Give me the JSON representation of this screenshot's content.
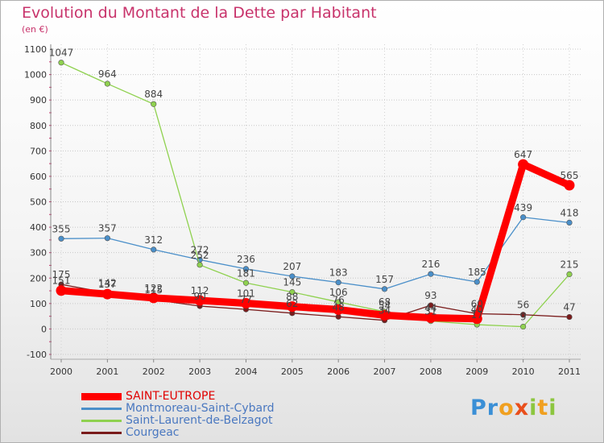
{
  "header": {
    "title": "Evolution du Montant de la Dette par Habitant",
    "unit": "(en €)"
  },
  "brand": {
    "letters": [
      {
        "ch": "P",
        "color": "#3a8fd6"
      },
      {
        "ch": "r",
        "color": "#3a8fd6"
      },
      {
        "ch": "o",
        "color": "#f0a020"
      },
      {
        "ch": "x",
        "color": "#e94e1b"
      },
      {
        "ch": "i",
        "color": "#8cc63f"
      },
      {
        "ch": "t",
        "color": "#f0a020"
      },
      {
        "ch": "i",
        "color": "#8cc63f"
      }
    ]
  },
  "chart_data": {
    "type": "line",
    "title": "Evolution du Montant de la Dette par Habitant",
    "subtitle": "(en €)",
    "x": [
      "2000",
      "2001",
      "2002",
      "2003",
      "2004",
      "2005",
      "2006",
      "2007",
      "2008",
      "2009",
      "2010",
      "2011"
    ],
    "yticks": [
      -100,
      0,
      100,
      200,
      300,
      400,
      500,
      600,
      700,
      800,
      900,
      1000,
      1100
    ],
    "ylim": [
      -100,
      1100
    ],
    "grid": "horizontal dotted",
    "legend_position": "bottom-left",
    "series": [
      {
        "name": "SAINT-EUTROPE",
        "color": "#ff0000",
        "values": [
          151,
          137,
          122,
          112,
          101,
          88,
          76,
          54,
          44,
          40,
          647,
          565
        ],
        "labels": [
          "151",
          "137",
          "122",
          "112",
          "101",
          "88",
          "76",
          "54",
          "44",
          "40",
          "647",
          "565"
        ],
        "emphasis": true
      },
      {
        "name": "Montmoreau-Saint-Cybard",
        "color": "#4a8fc9",
        "values": [
          355,
          357,
          312,
          272,
          236,
          207,
          183,
          157,
          216,
          185,
          439,
          418
        ],
        "labels": [
          "355",
          "357",
          "312",
          "272",
          "236",
          "207",
          "183",
          "157",
          "216",
          "185",
          "439",
          "418"
        ]
      },
      {
        "name": "Saint-Laurent-de-Belzagot",
        "color": "#8fd14f",
        "values": [
          1047,
          964,
          884,
          252,
          181,
          145,
          106,
          68,
          31,
          17,
          9,
          215
        ],
        "labels": [
          "1047",
          "964",
          "884",
          "252",
          "181",
          "145",
          "106",
          "68",
          "31",
          "17",
          "9",
          "215"
        ]
      },
      {
        "name": "Courgeac",
        "color": "#7a1c1c",
        "values": [
          175,
          142,
          115,
          90,
          77,
          62,
          48,
          34,
          93,
          60,
          56,
          47
        ],
        "labels": [
          "175",
          "142",
          "115",
          "90",
          "77",
          "62",
          "48",
          "34",
          "93",
          "60",
          "56",
          "47"
        ]
      }
    ]
  }
}
